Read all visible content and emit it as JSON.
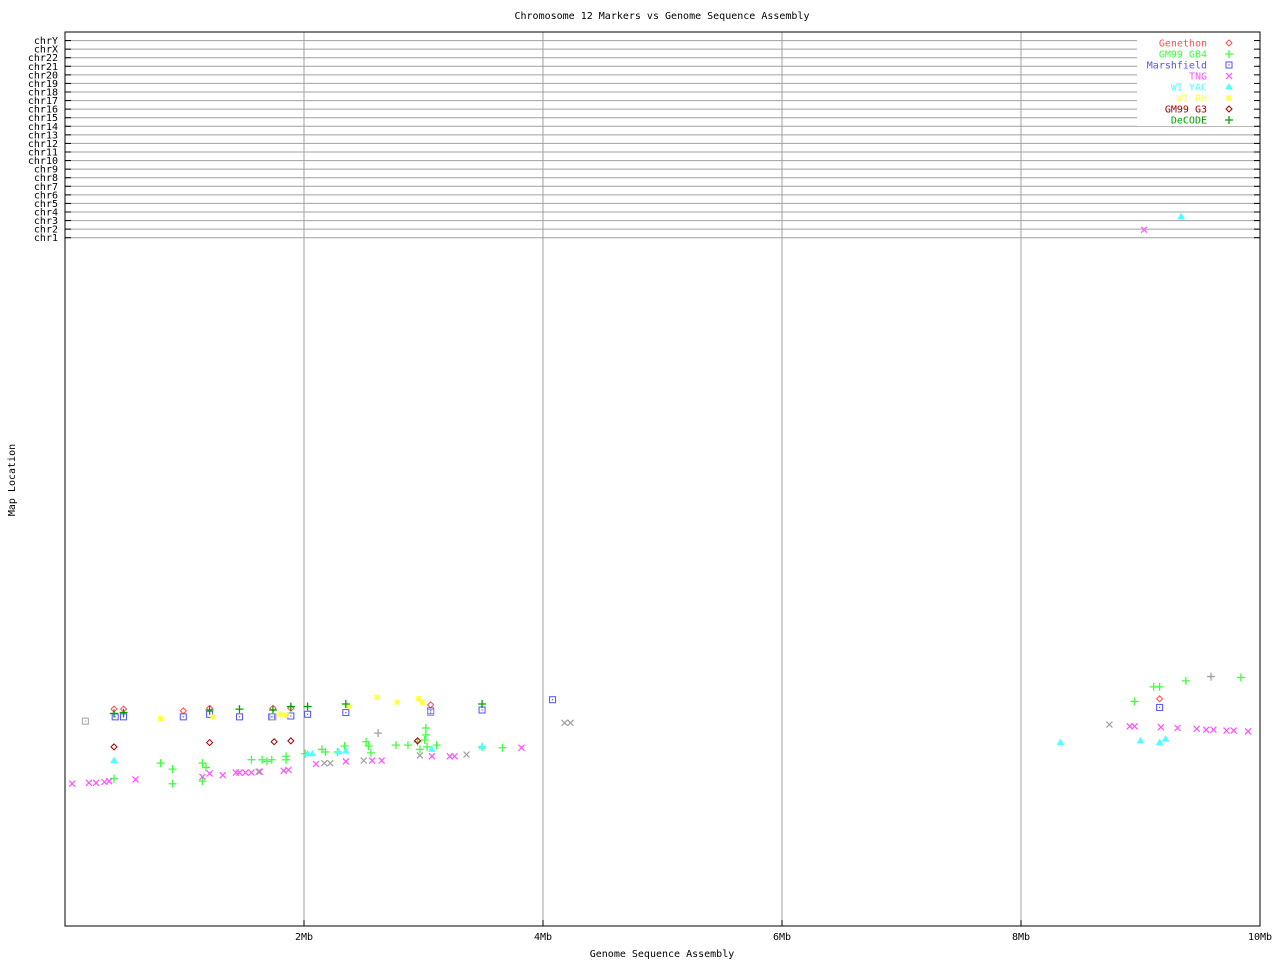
{
  "chart_data": {
    "type": "scatter",
    "title": "Chromosome 12 Markers vs Genome Sequence Assembly",
    "xlabel": "Genome Sequence Assembly",
    "ylabel": "Map Location",
    "xlim": [
      0,
      10
    ],
    "ylim": [
      -79.3,
      25.0
    ],
    "x_ticks": [
      {
        "v": 2,
        "label": "2Mb"
      },
      {
        "v": 4,
        "label": "4Mb"
      },
      {
        "v": 6,
        "label": "6Mb"
      },
      {
        "v": 8,
        "label": "8Mb"
      },
      {
        "v": 10,
        "label": "10Mb"
      }
    ],
    "y_ticks": [
      {
        "v": 24,
        "label": "chrY"
      },
      {
        "v": 23,
        "label": "chrX"
      },
      {
        "v": 22,
        "label": "chr22"
      },
      {
        "v": 21,
        "label": "chr21"
      },
      {
        "v": 20,
        "label": "chr20"
      },
      {
        "v": 19,
        "label": "chr19"
      },
      {
        "v": 18,
        "label": "chr18"
      },
      {
        "v": 17,
        "label": "chr17"
      },
      {
        "v": 16,
        "label": "chr16"
      },
      {
        "v": 15,
        "label": "chr15"
      },
      {
        "v": 14,
        "label": "chr14"
      },
      {
        "v": 13,
        "label": "chr13"
      },
      {
        "v": 12,
        "label": "chr12"
      },
      {
        "v": 11,
        "label": "chr11"
      },
      {
        "v": 10,
        "label": "chr10"
      },
      {
        "v": 9,
        "label": "chr9"
      },
      {
        "v": 8,
        "label": "chr8"
      },
      {
        "v": 7,
        "label": "chr7"
      },
      {
        "v": 6,
        "label": "chr6"
      },
      {
        "v": 5,
        "label": "chr5"
      },
      {
        "v": 4,
        "label": "chr4"
      },
      {
        "v": 3,
        "label": "chr3"
      },
      {
        "v": 2,
        "label": "chr2"
      },
      {
        "v": 1,
        "label": "chr1"
      }
    ],
    "grid": true,
    "legend_placement": "top-right",
    "series": [
      {
        "name": "Genethon",
        "color": "#ff5050",
        "marker": "diamond",
        "points": [
          [
            0.41,
            -54.0
          ],
          [
            0.49,
            -54.0
          ],
          [
            0.99,
            -54.2
          ],
          [
            1.21,
            -53.9
          ],
          [
            1.74,
            -53.9
          ],
          [
            1.89,
            -53.9
          ],
          [
            3.06,
            -53.5
          ],
          [
            9.16,
            -52.8
          ]
        ]
      },
      {
        "name": "GM99 GB4",
        "color": "#40ff40",
        "marker": "plus",
        "points": [
          [
            0.41,
            -62.1
          ],
          [
            0.8,
            -60.3
          ],
          [
            0.9,
            -61.0
          ],
          [
            0.9,
            -62.7
          ],
          [
            1.15,
            -60.3
          ],
          [
            1.18,
            -60.8
          ],
          [
            1.15,
            -62.4
          ],
          [
            1.56,
            -59.9
          ],
          [
            1.65,
            -59.9
          ],
          [
            1.69,
            -60.1
          ],
          [
            1.73,
            -59.9
          ],
          [
            1.85,
            -59.5
          ],
          [
            1.85,
            -59.9
          ],
          [
            2.01,
            -59.2
          ],
          [
            2.15,
            -58.7
          ],
          [
            2.18,
            -59.0
          ],
          [
            2.28,
            -59.0
          ],
          [
            2.34,
            -58.3
          ],
          [
            2.52,
            -57.8
          ],
          [
            2.54,
            -58.3
          ],
          [
            2.56,
            -59.1
          ],
          [
            2.77,
            -58.2
          ],
          [
            2.87,
            -58.2
          ],
          [
            2.95,
            -57.8
          ],
          [
            2.97,
            -58.7
          ],
          [
            3.01,
            -57.6
          ],
          [
            3.02,
            -57.0
          ],
          [
            3.02,
            -56.2
          ],
          [
            3.03,
            -58.4
          ],
          [
            3.11,
            -58.2
          ],
          [
            3.49,
            -58.4
          ],
          [
            3.66,
            -58.5
          ],
          [
            8.95,
            -53.1
          ],
          [
            9.11,
            -51.4
          ],
          [
            9.16,
            -51.4
          ],
          [
            9.38,
            -50.7
          ],
          [
            9.84,
            -50.3
          ]
        ]
      },
      {
        "name": "Marshfield",
        "color": "#5050ff",
        "marker": "square",
        "points": [
          [
            0.42,
            -54.9
          ],
          [
            0.49,
            -54.9
          ],
          [
            0.99,
            -54.9
          ],
          [
            1.21,
            -54.6
          ],
          [
            1.46,
            -54.9
          ],
          [
            1.73,
            -54.9
          ],
          [
            1.89,
            -54.8
          ],
          [
            2.03,
            -54.6
          ],
          [
            2.35,
            -54.4
          ],
          [
            3.06,
            -54.2
          ],
          [
            3.49,
            -54.1
          ],
          [
            4.08,
            -52.9
          ],
          [
            9.16,
            -53.8
          ]
        ]
      },
      {
        "name": "TNG",
        "color": "#ff50ff",
        "marker": "cross",
        "points": [
          [
            0.06,
            -62.7
          ],
          [
            0.2,
            -62.6
          ],
          [
            0.26,
            -62.6
          ],
          [
            0.33,
            -62.5
          ],
          [
            0.37,
            -62.4
          ],
          [
            0.59,
            -62.2
          ],
          [
            1.15,
            -61.9
          ],
          [
            1.21,
            -61.5
          ],
          [
            1.32,
            -61.7
          ],
          [
            1.43,
            -61.4
          ],
          [
            1.46,
            -61.4
          ],
          [
            1.51,
            -61.4
          ],
          [
            1.56,
            -61.4
          ],
          [
            1.63,
            -61.3
          ],
          [
            1.83,
            -61.2
          ],
          [
            1.87,
            -61.1
          ],
          [
            2.1,
            -60.4
          ],
          [
            2.35,
            -60.1
          ],
          [
            2.57,
            -60.0
          ],
          [
            2.65,
            -60.0
          ],
          [
            3.07,
            -59.5
          ],
          [
            3.22,
            -59.5
          ],
          [
            3.26,
            -59.5
          ],
          [
            3.82,
            -58.5
          ],
          [
            8.91,
            -56.0
          ],
          [
            8.95,
            -56.0
          ],
          [
            9.17,
            -56.1
          ],
          [
            9.31,
            -56.2
          ],
          [
            9.47,
            -56.3
          ],
          [
            9.55,
            -56.4
          ],
          [
            9.61,
            -56.4
          ],
          [
            9.72,
            -56.5
          ],
          [
            9.78,
            -56.5
          ],
          [
            9.9,
            -56.6
          ],
          [
            9.03,
            1.93
          ]
        ]
      },
      {
        "name": "WI YAC",
        "color": "#50ffff",
        "marker": "triangle",
        "points": [
          [
            0.41,
            -60.0
          ],
          [
            2.03,
            -59.2
          ],
          [
            2.07,
            -59.2
          ],
          [
            2.29,
            -59.0
          ],
          [
            2.35,
            -58.9
          ],
          [
            3.07,
            -58.7
          ],
          [
            3.49,
            -58.4
          ],
          [
            8.33,
            -57.9
          ],
          [
            9.0,
            -57.7
          ],
          [
            9.16,
            -57.9
          ],
          [
            9.21,
            -57.5
          ],
          [
            9.34,
            3.45
          ]
        ]
      },
      {
        "name": "WI RH",
        "color": "#ffff40",
        "marker": "star",
        "points": [
          [
            0.8,
            -55.1
          ],
          [
            1.24,
            -54.9
          ],
          [
            1.8,
            -54.6
          ],
          [
            1.85,
            -54.7
          ],
          [
            2.38,
            -53.7
          ],
          [
            2.61,
            -52.6
          ],
          [
            2.78,
            -53.2
          ],
          [
            2.96,
            -52.8
          ],
          [
            2.99,
            -53.2
          ]
        ]
      },
      {
        "name": "GM99 G3",
        "color": "#a00000",
        "marker": "diamond",
        "points": [
          [
            0.41,
            -58.4
          ],
          [
            1.21,
            -57.9
          ],
          [
            1.75,
            -57.8
          ],
          [
            1.89,
            -57.7
          ],
          [
            2.95,
            -57.7
          ]
        ]
      },
      {
        "name": "DeCODE",
        "color": "#00a000",
        "marker": "plus",
        "points": [
          [
            0.41,
            -54.5
          ],
          [
            0.49,
            -54.4
          ],
          [
            1.21,
            -54.1
          ],
          [
            1.46,
            -54.0
          ],
          [
            1.74,
            -54.1
          ],
          [
            1.89,
            -53.7
          ],
          [
            2.03,
            -53.7
          ],
          [
            2.35,
            -53.4
          ],
          [
            3.49,
            -53.4
          ]
        ]
      },
      {
        "color": "#a0a0a0",
        "marker": "square",
        "points": [
          [
            0.17,
            -55.4
          ],
          [
            3.06,
            -54.4
          ],
          [
            1.74,
            -54.9
          ]
        ]
      },
      {
        "color": "#a0a0a0",
        "marker": "cross",
        "points": [
          [
            4.18,
            -55.6
          ],
          [
            4.23,
            -55.6
          ],
          [
            8.74,
            -55.8
          ],
          [
            2.17,
            -60.3
          ],
          [
            2.22,
            -60.3
          ],
          [
            2.5,
            -60.0
          ],
          [
            2.97,
            -59.4
          ],
          [
            3.36,
            -59.3
          ],
          [
            1.62,
            -61.3
          ]
        ]
      },
      {
        "color": "#a0a0a0",
        "marker": "plus",
        "points": [
          [
            2.62,
            -56.8
          ],
          [
            9.59,
            -50.2
          ]
        ]
      }
    ]
  }
}
